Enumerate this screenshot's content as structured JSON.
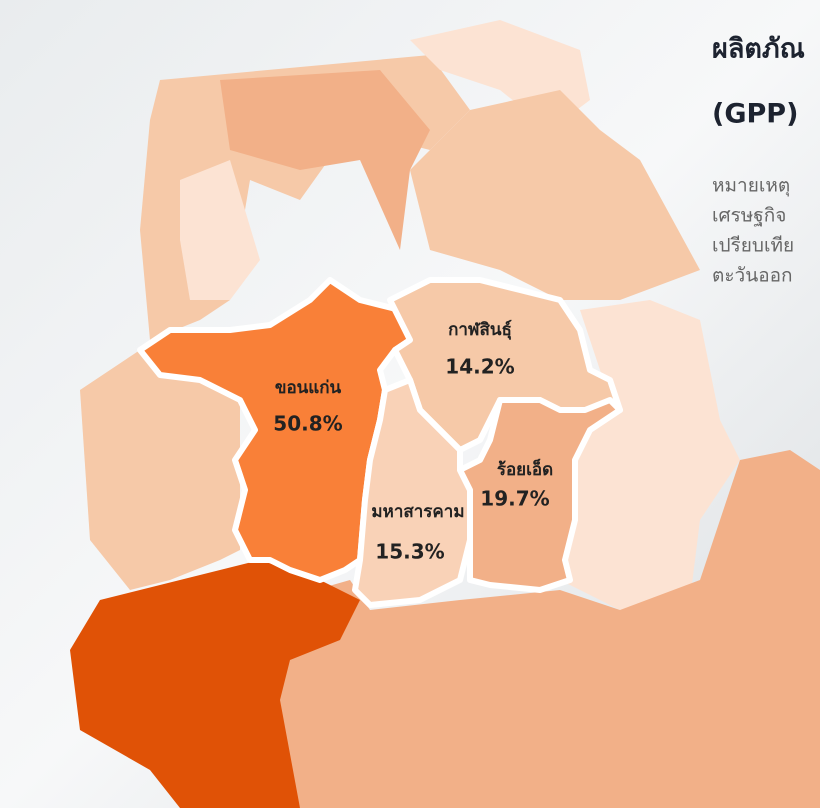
{
  "header": {
    "title": "ผลิตภัณ",
    "subtitle": "(GPP)"
  },
  "note": {
    "lines": [
      "หมายเหตุ",
      "เศรษฐกิจ",
      "เปรียบเทีย",
      "ตะวันออก"
    ]
  },
  "regions": [
    {
      "name": "ขอนแก่น",
      "share": "50.8%"
    },
    {
      "name": "กาฬสินธุ์",
      "share": "14.2%"
    },
    {
      "name": "มหาสารคาม",
      "share": "15.3%"
    },
    {
      "name": "ร้อยเอ็ด",
      "share": "19.7%"
    }
  ]
}
